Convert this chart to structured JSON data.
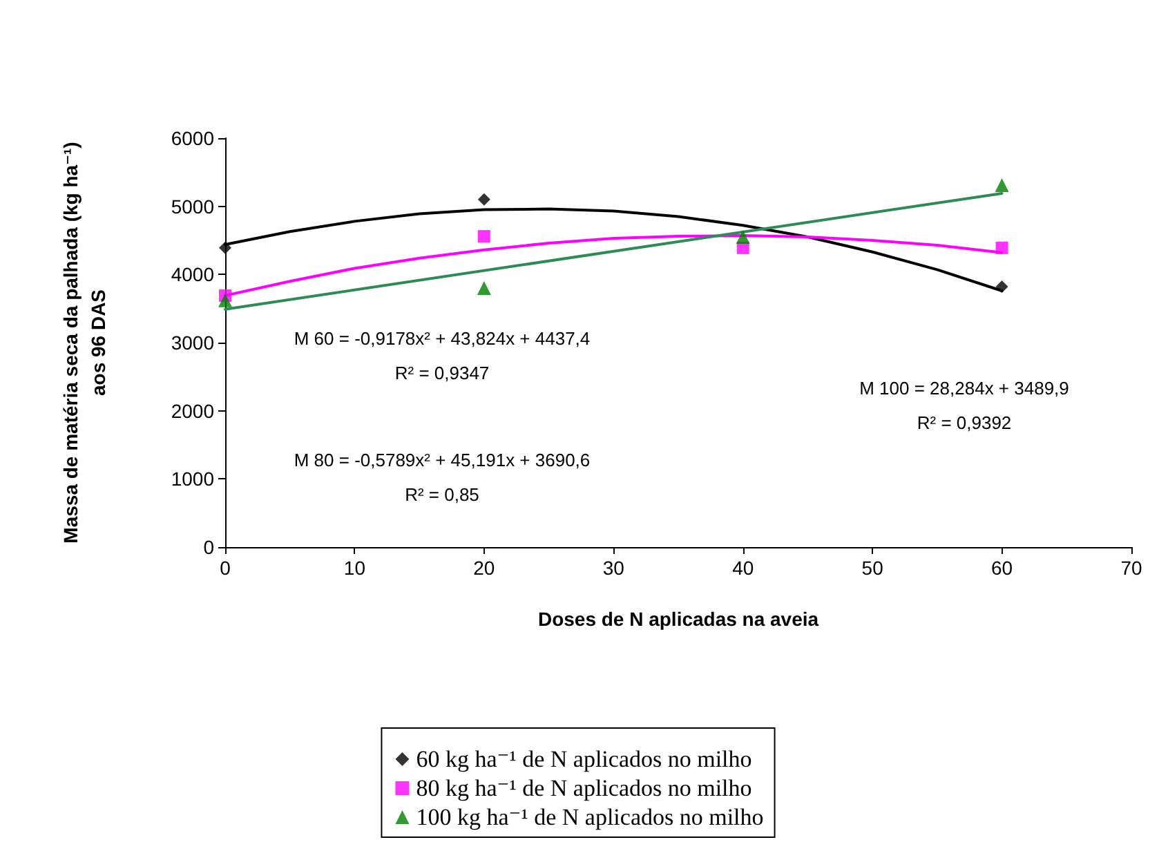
{
  "chart_data": {
    "type": "scatter",
    "xlabel": "Doses de N aplicadas na aveia",
    "ylabel": "Massa de matéria seca da palhada (kg ha⁻¹)\naos 96 DAS",
    "xlim": [
      0,
      70
    ],
    "xticks": [
      0,
      10,
      20,
      30,
      40,
      50,
      60,
      70
    ],
    "ylim": [
      0,
      6000
    ],
    "yticks": [
      0,
      1000,
      2000,
      3000,
      4000,
      5000,
      6000
    ],
    "grid": false,
    "legend": "bottom",
    "x": [
      0,
      20,
      40,
      60
    ],
    "series": [
      {
        "name": "60 kg ha⁻¹ de N aplicados no milho",
        "color": "#000000",
        "marker": "diamond",
        "values": [
          4390,
          5100,
          null,
          3820
        ]
      },
      {
        "name": "80 kg ha⁻¹ de N aplicados no milho",
        "color": "#ff00ff",
        "marker": "square",
        "values": [
          3690,
          4560,
          4390,
          4390
        ]
      },
      {
        "name": "100 kg ha⁻¹ de N aplicados no milho",
        "color": "#008000",
        "marker": "triangle",
        "values": [
          3620,
          3800,
          4550,
          5310
        ]
      },
      {
        "type": "line",
        "color": "#000000",
        "marker": "none",
        "x": [
          0,
          5,
          10,
          15,
          20,
          25,
          30,
          35,
          40,
          45,
          50,
          55,
          60
        ],
        "values": [
          4440,
          4630,
          4780,
          4890,
          4950,
          4960,
          4930,
          4850,
          4720,
          4550,
          4330,
          4070,
          3760
        ]
      },
      {
        "type": "line",
        "color": "#ff00ff",
        "marker": "none",
        "x": [
          0,
          5,
          10,
          15,
          20,
          25,
          30,
          35,
          40,
          45,
          50,
          55,
          60
        ],
        "values": [
          3690,
          3900,
          4090,
          4240,
          4360,
          4460,
          4530,
          4560,
          4570,
          4550,
          4500,
          4430,
          4320
        ]
      },
      {
        "type": "line",
        "color": "#2e8b57",
        "marker": "none",
        "x": [
          0,
          60
        ],
        "values": [
          3490,
          5190
        ]
      }
    ],
    "annotations": [
      "M 60 = -0,9178x² + 43,824x + 4437,4",
      "R² = 0,9347",
      "M 80 = -0,5789x² + 45,191x + 3690,6",
      "R² = 0,85",
      "M 100 = 28,284x + 3489,9",
      "R² = 0,9392"
    ]
  }
}
